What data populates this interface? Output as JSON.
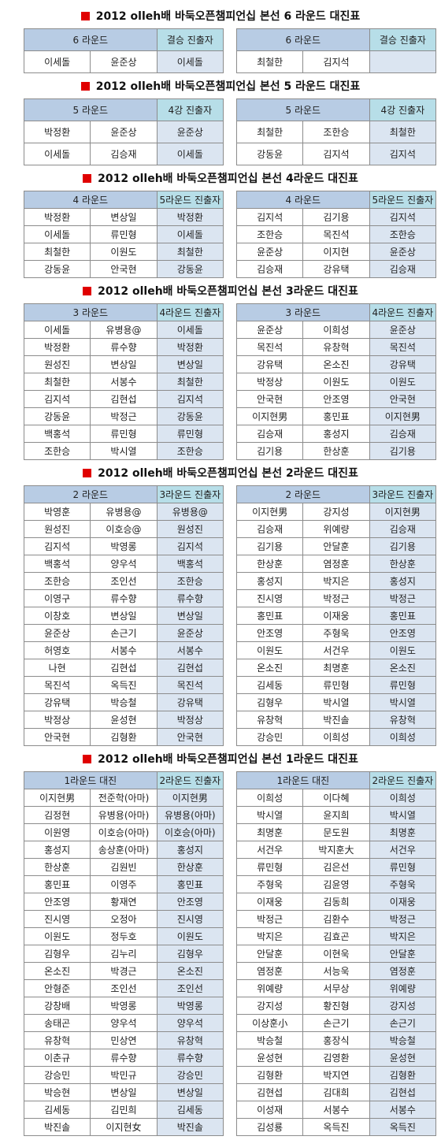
{
  "sections": [
    {
      "title": "2012 olleh배 바둑오픈챔피언십 본선 6 라운드 대진표",
      "tables": [
        {
          "round": "6 라운드",
          "advance": "결승 진출자",
          "rows": [
            [
              "이세돌",
              "윤준상",
              "이세돌"
            ]
          ]
        },
        {
          "round": "6 라운드",
          "advance": "결승 진출자",
          "rows": [
            [
              "최철한",
              "김지석"
            ]
          ]
        }
      ]
    },
    {
      "title": "2012 olleh배 바둑오픈챔피언십 본선 5 라운드 대진표",
      "tables": [
        {
          "round": "5 라운드",
          "advance": "4강 진출자",
          "rows": [
            [
              "박정환",
              "윤준상",
              "윤준상"
            ],
            [
              "이세돌",
              "김승재",
              "이세돌"
            ]
          ]
        },
        {
          "round": "5 라운드",
          "advance": "4강 진출자",
          "rows": [
            [
              "최철한",
              "조한승",
              "최철한"
            ],
            [
              "강동윤",
              "김지석",
              "김지석"
            ]
          ]
        }
      ]
    },
    {
      "title": "2012 olleh배 바둑오픈챔피언십 본선 4라운드 대진표",
      "tables": [
        {
          "round": "4 라운드",
          "advance": "5라운드 진출자",
          "rows": [
            [
              "박정환",
              "변상일",
              "박정환"
            ],
            [
              "이세돌",
              "류민형",
              "이세돌"
            ],
            [
              "최철한",
              "이원도",
              "최철한"
            ],
            [
              "강동윤",
              "안국현",
              "강동윤"
            ]
          ]
        },
        {
          "round": "4 라운드",
          "advance": "5라운드 진출자",
          "rows": [
            [
              "김지석",
              "김기용",
              "김지석"
            ],
            [
              "조한승",
              "목진석",
              "조한승"
            ],
            [
              "윤준상",
              "이지현",
              "윤준상"
            ],
            [
              "김승재",
              "강유택",
              "김승재"
            ]
          ]
        }
      ]
    },
    {
      "title": "2012 olleh배 바둑오픈챔피언십 본선 3라운드 대진표",
      "tables": [
        {
          "round": "3 라운드",
          "advance": "4라운드 진출자",
          "rows": [
            [
              "이세돌",
              "유병용@",
              "이세돌"
            ],
            [
              "박정환",
              "류수향",
              "박정환"
            ],
            [
              "원성진",
              "변상일",
              "변상일"
            ],
            [
              "최철한",
              "서봉수",
              "최철한"
            ],
            [
              "김지석",
              "김현섭",
              "김지석"
            ],
            [
              "강동윤",
              "박정근",
              "강동윤"
            ],
            [
              "백홍석",
              "류민형",
              "류민형"
            ],
            [
              "조한승",
              "박시열",
              "조한승"
            ]
          ]
        },
        {
          "round": "3 라운드",
          "advance": "4라운드 진출자",
          "rows": [
            [
              "윤준상",
              "이희성",
              "윤준상"
            ],
            [
              "목진석",
              "유창혁",
              "목진석"
            ],
            [
              "강유택",
              "온소진",
              "강유택"
            ],
            [
              "박정상",
              "이원도",
              "이원도"
            ],
            [
              "안국현",
              "안조영",
              "안국현"
            ],
            [
              "이지현男",
              "홍민표",
              "이지현男"
            ],
            [
              "김승재",
              "홍성지",
              "김승재"
            ],
            [
              "김기용",
              "한상훈",
              "김기용"
            ]
          ]
        }
      ]
    },
    {
      "title": "2012 olleh배 바둑오픈챔피언십 본선 2라운드 대진표",
      "tables": [
        {
          "round": "2 라운드",
          "advance": "3라운드 진출자",
          "rows": [
            [
              "박영훈",
              "유병용@",
              "유병용@"
            ],
            [
              "원성진",
              "이호승@",
              "원성진"
            ],
            [
              "김지석",
              "박영롱",
              "김지석"
            ],
            [
              "백홍석",
              "양우석",
              "백홍석"
            ],
            [
              "조한승",
              "조인선",
              "조한승"
            ],
            [
              "이영구",
              "류수향",
              "류수향"
            ],
            [
              "이창호",
              "변상일",
              "변상일"
            ],
            [
              "윤준상",
              "손근기",
              "윤준상"
            ],
            [
              "허영호",
              "서봉수",
              "서봉수"
            ],
            [
              "나현",
              "김현섭",
              "김현섭"
            ],
            [
              "목진석",
              "옥득진",
              "목진석"
            ],
            [
              "강유택",
              "박승철",
              "강유택"
            ],
            [
              "박정상",
              "윤성현",
              "박정상"
            ],
            [
              "안국현",
              "김형환",
              "안국현"
            ]
          ]
        },
        {
          "round": "2 라운드",
          "advance": "3라운드 진출자",
          "rows": [
            [
              "이지현男",
              "강지성",
              "이지현男"
            ],
            [
              "김승재",
              "위예량",
              "김승재"
            ],
            [
              "김기용",
              "안달훈",
              "김기용"
            ],
            [
              "한상훈",
              "염정훈",
              "한상훈"
            ],
            [
              "홍성지",
              "박지은",
              "홍성지"
            ],
            [
              "진시영",
              "박정근",
              "박정근"
            ],
            [
              "홍민표",
              "이재웅",
              "홍민표"
            ],
            [
              "안조영",
              "주형욱",
              "안조영"
            ],
            [
              "이원도",
              "서건우",
              "이원도"
            ],
            [
              "온소진",
              "최명훈",
              "온소진"
            ],
            [
              "김세동",
              "류민형",
              "류민형"
            ],
            [
              "김형우",
              "박시열",
              "박시열"
            ],
            [
              "유창혁",
              "박진솔",
              "유창혁"
            ],
            [
              "강승민",
              "이희성",
              "이희성"
            ]
          ]
        }
      ]
    },
    {
      "title": "2012 olleh배 바둑오픈챔피언십 본선 1라운드 대진표",
      "tables": [
        {
          "round": "1라운드 대진",
          "advance": "2라운드 진출자",
          "rows": [
            [
              "이지현男",
              "전준학(아마)",
              "이지현男"
            ],
            [
              "김정현",
              "유병용(아마)",
              "유병용(아마)"
            ],
            [
              "이원영",
              "이호승(아마)",
              "이호승(아마)"
            ],
            [
              "홍성지",
              "송상훈(아마)",
              "홍성지"
            ],
            [
              "한상훈",
              "김원빈",
              "한상훈"
            ],
            [
              "홍민표",
              "이영주",
              "홍민표"
            ],
            [
              "안조영",
              "황재연",
              "안조영"
            ],
            [
              "진시영",
              "오정아",
              "진시영"
            ],
            [
              "이원도",
              "정두호",
              "이원도"
            ],
            [
              "김형우",
              "김누리",
              "김형우"
            ],
            [
              "온소진",
              "박경근",
              "온소진"
            ],
            [
              "안형준",
              "조인선",
              "조인선"
            ],
            [
              "강창배",
              "박영롱",
              "박영롱"
            ],
            [
              "송태곤",
              "양우석",
              "양우석"
            ],
            [
              "유창혁",
              "민상연",
              "유창혁"
            ],
            [
              "이춘규",
              "류수향",
              "류수향"
            ],
            [
              "강승민",
              "박민규",
              "강승민"
            ],
            [
              "박승현",
              "변상일",
              "변상일"
            ],
            [
              "김세동",
              "김민희",
              "김세동"
            ],
            [
              "박진솔",
              "이지현女",
              "박진솔"
            ]
          ]
        },
        {
          "round": "1라운드 대진",
          "advance": "2라운드 진출자",
          "rows": [
            [
              "이희성",
              "이다혜",
              "이희성"
            ],
            [
              "박시열",
              "윤지희",
              "박시열"
            ],
            [
              "최명훈",
              "문도원",
              "최명훈"
            ],
            [
              "서건우",
              "박지훈大",
              "서건우"
            ],
            [
              "류민형",
              "김은선",
              "류민형"
            ],
            [
              "주형욱",
              "김윤영",
              "주형욱"
            ],
            [
              "이재웅",
              "김동희",
              "이재웅"
            ],
            [
              "박정근",
              "김환수",
              "박정근"
            ],
            [
              "박지은",
              "김효곤",
              "박지은"
            ],
            [
              "안달훈",
              "이현욱",
              "안달훈"
            ],
            [
              "염정훈",
              "서능욱",
              "염정훈"
            ],
            [
              "위예량",
              "서무상",
              "위예량"
            ],
            [
              "강지성",
              "황진형",
              "강지성"
            ],
            [
              "이상훈小",
              "손근기",
              "손근기"
            ],
            [
              "박승철",
              "홍장식",
              "박승철"
            ],
            [
              "윤성현",
              "김영환",
              "윤성현"
            ],
            [
              "김형환",
              "박지연",
              "김형환"
            ],
            [
              "김현섭",
              "김대희",
              "김현섭"
            ],
            [
              "이성재",
              "서봉수",
              "서봉수"
            ],
            [
              "김성룡",
              "옥득진",
              "옥득진"
            ]
          ]
        }
      ]
    }
  ]
}
